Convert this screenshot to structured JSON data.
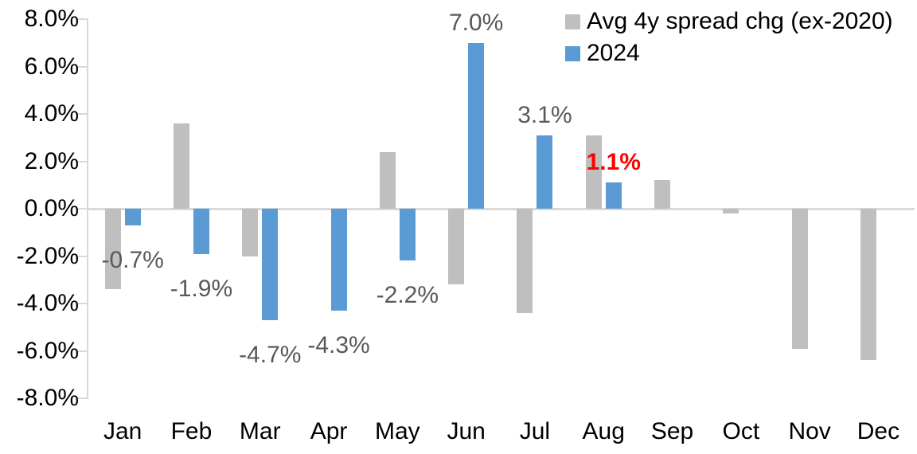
{
  "chart_data": {
    "type": "bar",
    "categories": [
      "Jan",
      "Feb",
      "Mar",
      "Apr",
      "May",
      "Jun",
      "Jul",
      "Aug",
      "Sep",
      "Oct",
      "Nov",
      "Dec"
    ],
    "series": [
      {
        "name": "Avg 4y spread chg (ex-2020)",
        "color": "#BFBFBF",
        "values": [
          -3.4,
          3.6,
          -2.0,
          0.0,
          2.4,
          -3.2,
          -4.4,
          3.1,
          1.2,
          -0.2,
          -5.9,
          -6.4
        ]
      },
      {
        "name": "2024",
        "color": "#5B9BD5",
        "values": [
          -0.7,
          -1.9,
          -4.7,
          -4.3,
          -2.2,
          7.0,
          3.1,
          1.1,
          null,
          null,
          null,
          null
        ]
      }
    ],
    "data_labels": [
      {
        "month": "Jan",
        "text": "-0.7%",
        "color": "#595959",
        "bold": false
      },
      {
        "month": "Feb",
        "text": "-1.9%",
        "color": "#595959",
        "bold": false
      },
      {
        "month": "Mar",
        "text": "-4.7%",
        "color": "#595959",
        "bold": false
      },
      {
        "month": "Apr",
        "text": "-4.3%",
        "color": "#595959",
        "bold": false
      },
      {
        "month": "May",
        "text": "-2.2%",
        "color": "#595959",
        "bold": false
      },
      {
        "month": "Jun",
        "text": "7.0%",
        "color": "#595959",
        "bold": false
      },
      {
        "month": "Jul",
        "text": "3.1%",
        "color": "#595959",
        "bold": false
      },
      {
        "month": "Aug",
        "text": "1.1%",
        "color": "#FF0000",
        "bold": true
      }
    ],
    "ytick_labels": [
      "8.0%",
      "6.0%",
      "4.0%",
      "2.0%",
      "0.0%",
      "-2.0%",
      "-4.0%",
      "-6.0%",
      "-8.0%"
    ],
    "ylim": [
      -8,
      8
    ],
    "ytick_step": 2,
    "xlabel": "",
    "ylabel": "",
    "grid": false,
    "zero_line": true,
    "legend_position": "top-right"
  },
  "colors": {
    "bar_gray": "#BFBFBF",
    "bar_blue": "#5B9BD5",
    "axis_line": "#D9D9D9",
    "axis_text": "#000000",
    "data_label": "#595959",
    "highlight": "#FF0000",
    "background": "#FFFFFF"
  }
}
